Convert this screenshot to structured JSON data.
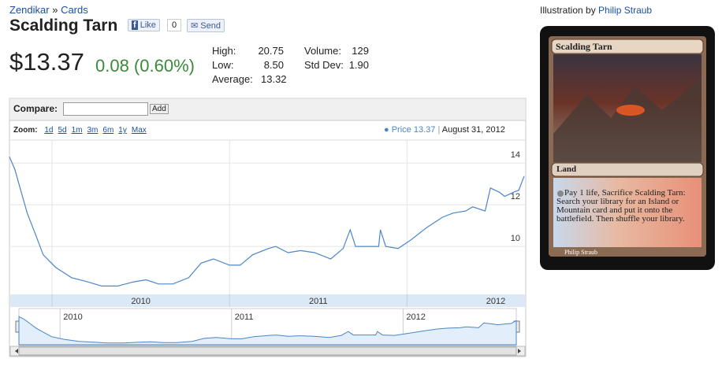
{
  "breadcrumb": {
    "set": "Zendikar",
    "separator": "»",
    "section": "Cards"
  },
  "title": "Scalding Tarn",
  "social": {
    "like": "Like",
    "like_count": "0",
    "send": "Send"
  },
  "price": "$13.37",
  "change": "0.08 (0.60%)",
  "stats": [
    {
      "label": "High:",
      "value": "20.75"
    },
    {
      "label": "Low:",
      "value": "8.50"
    },
    {
      "label": "Average:",
      "value": "13.32"
    },
    {
      "label": "Volume:",
      "value": "129"
    },
    {
      "label": "Std Dev:",
      "value": "1.90"
    }
  ],
  "illustration": {
    "prefix": "Illustration by",
    "artist": "Philip Straub"
  },
  "card": {
    "name": "Scalding Tarn",
    "type_line": "Land",
    "rules": "Pay 1 life, Sacrifice Scalding Tarn: Search your library for an Island or Mountain card and put it onto the battlefield. Then shuffle your library.",
    "artist": "Philip Straub"
  },
  "compare": {
    "label": "Compare:",
    "button": "Add"
  },
  "zoom": {
    "label": "Zoom:",
    "options": [
      "1d",
      "5d",
      "1m",
      "3m",
      "6m",
      "1y",
      "Max"
    ]
  },
  "chart": {
    "type": "line",
    "current": 13.37,
    "date": "August 31, 2012",
    "x": [
      2009.76,
      2009.79,
      2009.82,
      2009.86,
      2009.91,
      2009.95,
      2010.02,
      2010.11,
      2010.2,
      2010.28,
      2010.37,
      2010.46,
      2010.53,
      2010.6,
      2010.68,
      2010.77,
      2010.84,
      2010.91,
      2011.0,
      2011.06,
      2011.13,
      2011.22,
      2011.26,
      2011.33,
      2011.4,
      2011.48,
      2011.57,
      2011.64,
      2011.68,
      2011.71,
      2011.84,
      2011.85,
      2011.88,
      2011.95,
      2012.02,
      2012.11,
      2012.2,
      2012.26,
      2012.33,
      2012.37,
      2012.44,
      2012.47,
      2012.52,
      2012.55,
      2012.6,
      2012.63,
      2012.66
    ],
    "series": [
      {
        "name": "Price",
        "color": "#4a86c8",
        "values": [
          14.3,
          13.7,
          12.8,
          11.6,
          10.5,
          9.6,
          9.0,
          8.5,
          8.3,
          8.1,
          8.1,
          8.3,
          8.4,
          8.2,
          8.2,
          8.5,
          9.2,
          9.4,
          9.1,
          9.1,
          9.6,
          9.9,
          10.0,
          9.7,
          9.8,
          9.7,
          9.4,
          9.9,
          10.8,
          10.0,
          10.0,
          10.8,
          10.0,
          9.9,
          10.3,
          10.9,
          11.4,
          11.6,
          11.7,
          11.9,
          11.7,
          12.8,
          12.6,
          12.4,
          12.6,
          12.7,
          13.37
        ]
      }
    ],
    "xlim": [
      2009.76,
      2012.66
    ],
    "ylim": [
      7.7,
      15.1
    ],
    "xticks": [
      2010,
      2011,
      2012
    ],
    "yticks": [
      10,
      12,
      14
    ],
    "grid": true
  }
}
